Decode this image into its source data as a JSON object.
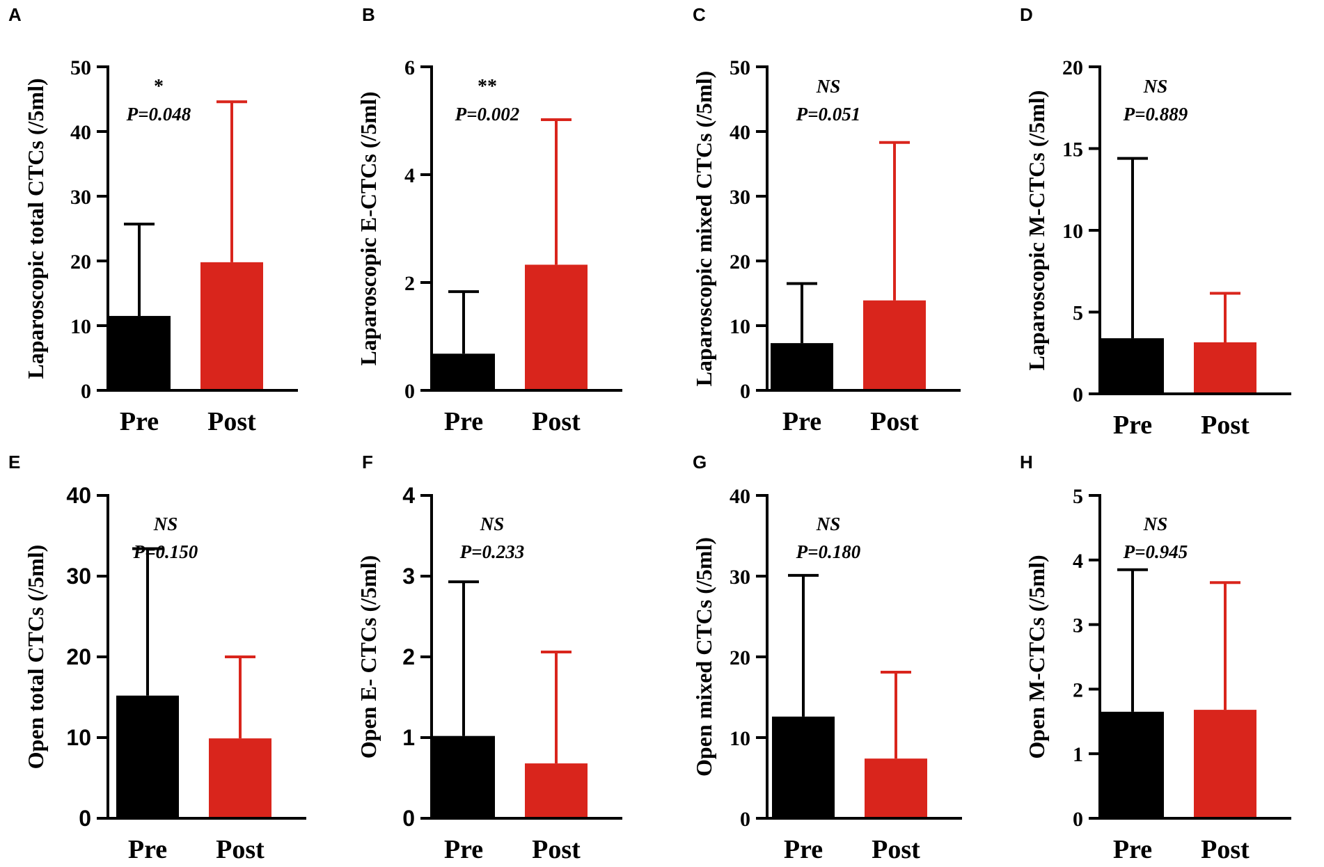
{
  "colors": {
    "pre": "#000000",
    "post": "#d9251c",
    "axis": "#000000"
  },
  "chart_data": [
    {
      "type": "bar",
      "panel": "A",
      "ylabel": "Laparoscopic total CTCs (/5ml)",
      "categories": [
        "Pre",
        "Post"
      ],
      "values": [
        11.5,
        19.8
      ],
      "error_upper": [
        25.7,
        44.6
      ],
      "ylim": [
        0,
        50
      ],
      "yticks": [
        "0",
        "10",
        "20",
        "30",
        "40",
        "50"
      ],
      "tick_values": [
        0,
        10,
        20,
        30,
        40,
        50
      ],
      "significance": "*",
      "p_value": "P=0.048",
      "sig_italic": false
    },
    {
      "type": "bar",
      "panel": "B",
      "ylabel": "Laparoscopic E-CTCs (/5ml)",
      "categories": [
        "Pre",
        "Post"
      ],
      "values": [
        0.68,
        2.33
      ],
      "error_upper": [
        1.83,
        5.02
      ],
      "ylim": [
        0,
        6
      ],
      "yticks": [
        "0",
        "2",
        "4",
        "6"
      ],
      "tick_values": [
        0,
        2,
        4,
        6
      ],
      "significance": "**",
      "p_value": "P=0.002",
      "sig_italic": false
    },
    {
      "type": "bar",
      "panel": "C",
      "ylabel": "Laparoscopic mixed CTCs (/5ml)",
      "categories": [
        "Pre",
        "Post"
      ],
      "values": [
        7.3,
        13.9
      ],
      "error_upper": [
        16.5,
        38.3
      ],
      "ylim": [
        0,
        50
      ],
      "yticks": [
        "0",
        "10",
        "20",
        "30",
        "40",
        "50"
      ],
      "tick_values": [
        0,
        10,
        20,
        30,
        40,
        50
      ],
      "significance": "NS",
      "p_value": "P=0.051",
      "sig_italic": true
    },
    {
      "type": "bar",
      "panel": "D",
      "ylabel": "Laparoscopic M-CTCs (/5ml)",
      "categories": [
        "Pre",
        "Post"
      ],
      "values": [
        3.4,
        3.15
      ],
      "error_upper": [
        14.4,
        6.15
      ],
      "ylim": [
        0,
        20
      ],
      "yticks": [
        "0",
        "5",
        "10",
        "15",
        "20"
      ],
      "tick_values": [
        0,
        5,
        10,
        15,
        20
      ],
      "significance": "NS",
      "p_value": "P=0.889",
      "sig_italic": true
    },
    {
      "type": "bar",
      "panel": "E",
      "ylabel": "Open total CTCs (/5ml)",
      "categories": [
        "Pre",
        "Post"
      ],
      "values": [
        15.2,
        9.9
      ],
      "error_upper": [
        33.4,
        20.0
      ],
      "ylim": [
        0,
        40
      ],
      "yticks": [
        "0",
        "10",
        "20",
        "30",
        "40"
      ],
      "tick_values": [
        0,
        10,
        20,
        30,
        40
      ],
      "significance": "NS",
      "p_value": "P=0.150",
      "sig_italic": true
    },
    {
      "type": "bar",
      "panel": "F",
      "ylabel": "Open E- CTCs (/5ml)",
      "categories": [
        "Pre",
        "Post"
      ],
      "values": [
        1.02,
        0.68
      ],
      "error_upper": [
        2.93,
        2.06
      ],
      "ylim": [
        0,
        4
      ],
      "yticks": [
        "0",
        "1",
        "2",
        "3",
        "4"
      ],
      "tick_values": [
        0,
        1,
        2,
        3,
        4
      ],
      "significance": "NS",
      "p_value": "P=0.233",
      "sig_italic": true
    },
    {
      "type": "bar",
      "panel": "G",
      "ylabel": "Open mixed CTCs (/5ml)",
      "categories": [
        "Pre",
        "Post"
      ],
      "values": [
        12.6,
        7.4
      ],
      "error_upper": [
        30.1,
        18.1
      ],
      "ylim": [
        0,
        40
      ],
      "yticks": [
        "0",
        "10",
        "20",
        "30",
        "40"
      ],
      "tick_values": [
        0,
        10,
        20,
        30,
        40
      ],
      "significance": "NS",
      "p_value": "P=0.180",
      "sig_italic": true
    },
    {
      "type": "bar",
      "panel": "H",
      "ylabel": "Open M-CTCs (/5ml)",
      "categories": [
        "Pre",
        "Post"
      ],
      "values": [
        1.65,
        1.68
      ],
      "error_upper": [
        3.85,
        3.65
      ],
      "ylim": [
        0,
        5
      ],
      "yticks": [
        "0",
        "1",
        "2",
        "3",
        "4",
        "5"
      ],
      "tick_values": [
        0,
        1,
        2,
        3,
        4,
        5
      ],
      "significance": "NS",
      "p_value": "P=0.945",
      "sig_italic": true
    }
  ]
}
